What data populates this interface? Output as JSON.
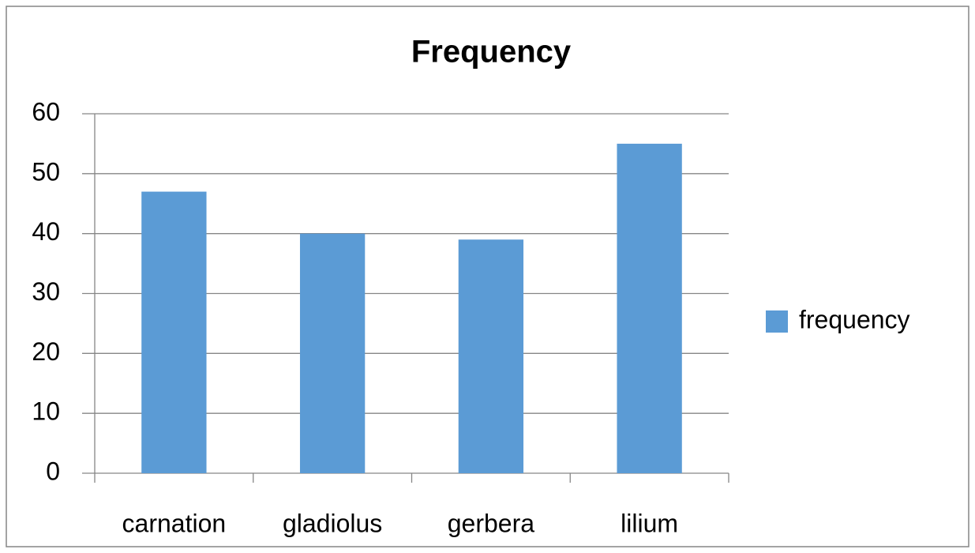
{
  "chart_data": {
    "type": "bar",
    "title": "Frequency",
    "categories": [
      "carnation",
      "gladiolus",
      "gerbera",
      "lilium"
    ],
    "series": [
      {
        "name": "frequency",
        "color": "#5b9bd5",
        "values": [
          47,
          40,
          39,
          55
        ]
      }
    ],
    "ylim": [
      0,
      60
    ],
    "yticks": [
      0,
      10,
      20,
      30,
      40,
      50,
      60
    ],
    "grid": true,
    "legend": "right"
  }
}
